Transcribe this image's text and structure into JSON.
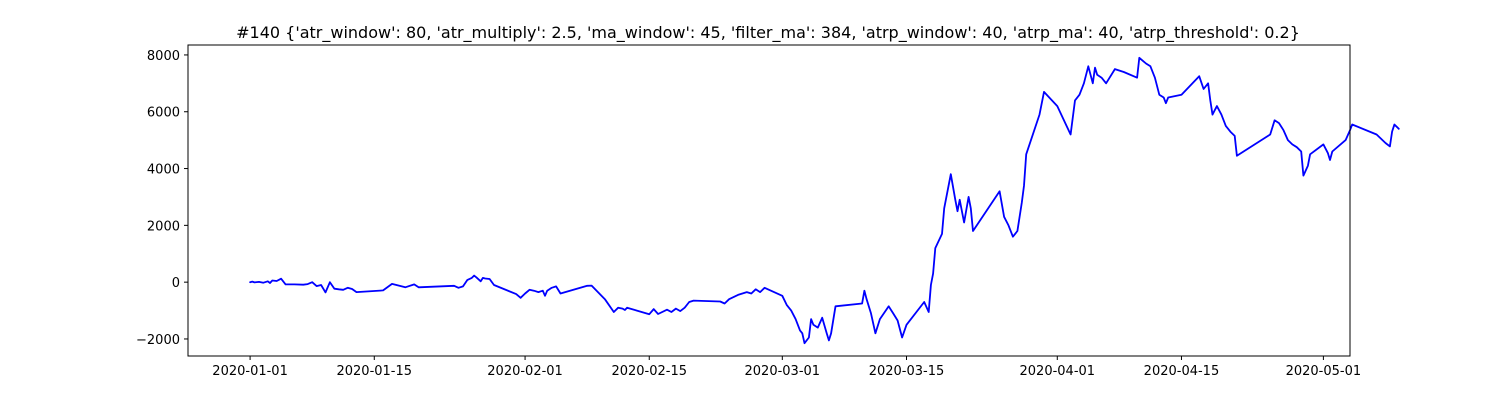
{
  "chart_data": {
    "type": "line",
    "title": "#140 {'atr_window': 80, 'atr_multiply': 2.5, 'ma_window': 45, 'filter_ma': 384, 'atrp_window': 40, 'atrp_ma': 40, 'atrp_threshold': 0.2}",
    "xlabel": "",
    "ylabel": "",
    "xlim": [
      "2019-12-25",
      "2020-05-04"
    ],
    "ylim": [
      -2600,
      8350
    ],
    "x_ticks": [
      {
        "value": "2020-01-01",
        "label": "2020-01-01"
      },
      {
        "value": "2020-01-15",
        "label": "2020-01-15"
      },
      {
        "value": "2020-02-01",
        "label": "2020-02-01"
      },
      {
        "value": "2020-02-15",
        "label": "2020-02-15"
      },
      {
        "value": "2020-03-01",
        "label": "2020-03-01"
      },
      {
        "value": "2020-03-15",
        "label": "2020-03-15"
      },
      {
        "value": "2020-04-01",
        "label": "2020-04-01"
      },
      {
        "value": "2020-04-15",
        "label": "2020-04-15"
      },
      {
        "value": "2020-05-01",
        "label": "2020-05-01"
      }
    ],
    "y_ticks": [
      {
        "value": -2000,
        "label": "−2000"
      },
      {
        "value": 0,
        "label": "0"
      },
      {
        "value": 2000,
        "label": "2000"
      },
      {
        "value": 4000,
        "label": "4000"
      },
      {
        "value": 6000,
        "label": "6000"
      },
      {
        "value": 8000,
        "label": "8000"
      }
    ],
    "grid": false,
    "series": [
      {
        "color": "#0000ff",
        "points": [
          [
            "2020-01-01 00:00",
            0
          ],
          [
            "2020-01-01 06:00",
            20
          ],
          [
            "2020-01-01 12:00",
            -10
          ],
          [
            "2020-01-02 00:00",
            10
          ],
          [
            "2020-01-02 12:00",
            -20
          ],
          [
            "2020-01-03 00:00",
            30
          ],
          [
            "2020-01-03 06:00",
            -30
          ],
          [
            "2020-01-03 12:00",
            60
          ],
          [
            "2020-01-04 00:00",
            40
          ],
          [
            "2020-01-04 12:00",
            120
          ],
          [
            "2020-01-05 00:00",
            -80
          ],
          [
            "2020-01-06 00:00",
            -80
          ],
          [
            "2020-01-07 00:00",
            -90
          ],
          [
            "2020-01-07 12:00",
            -70
          ],
          [
            "2020-01-08 00:00",
            0
          ],
          [
            "2020-01-08 12:00",
            -140
          ],
          [
            "2020-01-09 00:00",
            -100
          ],
          [
            "2020-01-09 12:00",
            -360
          ],
          [
            "2020-01-10 00:00",
            0
          ],
          [
            "2020-01-10 12:00",
            -230
          ],
          [
            "2020-01-11 00:00",
            -250
          ],
          [
            "2020-01-11 12:00",
            -270
          ],
          [
            "2020-01-12 00:00",
            -200
          ],
          [
            "2020-01-12 12:00",
            -240
          ],
          [
            "2020-01-13 00:00",
            -350
          ],
          [
            "2020-01-16 00:00",
            -290
          ],
          [
            "2020-01-17 00:00",
            -60
          ],
          [
            "2020-01-18 12:00",
            -180
          ],
          [
            "2020-01-19 12:00",
            -80
          ],
          [
            "2020-01-20 00:00",
            -180
          ],
          [
            "2020-01-24 00:00",
            -130
          ],
          [
            "2020-01-24 12:00",
            -200
          ],
          [
            "2020-01-25 00:00",
            -150
          ],
          [
            "2020-01-25 12:00",
            80
          ],
          [
            "2020-01-26 00:00",
            150
          ],
          [
            "2020-01-26 06:00",
            230
          ],
          [
            "2020-01-26 12:00",
            170
          ],
          [
            "2020-01-27 00:00",
            30
          ],
          [
            "2020-01-27 06:00",
            150
          ],
          [
            "2020-01-27 12:00",
            130
          ],
          [
            "2020-01-28 00:00",
            110
          ],
          [
            "2020-01-28 12:00",
            -100
          ],
          [
            "2020-01-31 00:00",
            -420
          ],
          [
            "2020-01-31 12:00",
            -550
          ],
          [
            "2020-02-01 00:00",
            -400
          ],
          [
            "2020-02-01 12:00",
            -270
          ],
          [
            "2020-02-02 00:00",
            -300
          ],
          [
            "2020-02-02 12:00",
            -350
          ],
          [
            "2020-02-03 00:00",
            -300
          ],
          [
            "2020-02-03 06:00",
            -480
          ],
          [
            "2020-02-03 12:00",
            -300
          ],
          [
            "2020-02-04 00:00",
            -200
          ],
          [
            "2020-02-04 12:00",
            -150
          ],
          [
            "2020-02-05 00:00",
            -400
          ],
          [
            "2020-02-08 00:00",
            -130
          ],
          [
            "2020-02-08 12:00",
            -120
          ],
          [
            "2020-02-09 00:00",
            -280
          ],
          [
            "2020-02-10 00:00",
            -600
          ],
          [
            "2020-02-11 00:00",
            -1050
          ],
          [
            "2020-02-11 12:00",
            -900
          ],
          [
            "2020-02-12 00:00",
            -930
          ],
          [
            "2020-02-12 06:00",
            -980
          ],
          [
            "2020-02-12 12:00",
            -900
          ],
          [
            "2020-02-15 00:00",
            -1130
          ],
          [
            "2020-02-15 12:00",
            -950
          ],
          [
            "2020-02-16 00:00",
            -1120
          ],
          [
            "2020-02-17 00:00",
            -970
          ],
          [
            "2020-02-17 12:00",
            -1050
          ],
          [
            "2020-02-18 00:00",
            -930
          ],
          [
            "2020-02-18 12:00",
            -1020
          ],
          [
            "2020-02-19 00:00",
            -900
          ],
          [
            "2020-02-19 12:00",
            -700
          ],
          [
            "2020-02-20 00:00",
            -650
          ],
          [
            "2020-02-23 00:00",
            -680
          ],
          [
            "2020-02-23 12:00",
            -750
          ],
          [
            "2020-02-24 00:00",
            -600
          ],
          [
            "2020-02-25 00:00",
            -450
          ],
          [
            "2020-02-26 00:00",
            -350
          ],
          [
            "2020-02-26 12:00",
            -400
          ],
          [
            "2020-02-27 00:00",
            -250
          ],
          [
            "2020-02-27 12:00",
            -350
          ],
          [
            "2020-02-28 00:00",
            -200
          ],
          [
            "2020-03-01 00:00",
            -480
          ],
          [
            "2020-03-01 12:00",
            -800
          ],
          [
            "2020-03-02 00:00",
            -1000
          ],
          [
            "2020-03-02 12:00",
            -1300
          ],
          [
            "2020-03-03 00:00",
            -1700
          ],
          [
            "2020-03-03 06:00",
            -1800
          ],
          [
            "2020-03-03 12:00",
            -2150
          ],
          [
            "2020-03-04 00:00",
            -1950
          ],
          [
            "2020-03-04 06:00",
            -1300
          ],
          [
            "2020-03-04 12:00",
            -1500
          ],
          [
            "2020-03-05 00:00",
            -1600
          ],
          [
            "2020-03-05 12:00",
            -1250
          ],
          [
            "2020-03-06 00:00",
            -1800
          ],
          [
            "2020-03-06 06:00",
            -2050
          ],
          [
            "2020-03-06 12:00",
            -1800
          ],
          [
            "2020-03-07 00:00",
            -850
          ],
          [
            "2020-03-10 00:00",
            -750
          ],
          [
            "2020-03-10 06:00",
            -300
          ],
          [
            "2020-03-10 12:00",
            -600
          ],
          [
            "2020-03-11 00:00",
            -1100
          ],
          [
            "2020-03-11 12:00",
            -1800
          ],
          [
            "2020-03-12 00:00",
            -1300
          ],
          [
            "2020-03-13 00:00",
            -850
          ],
          [
            "2020-03-13 12:00",
            -1100
          ],
          [
            "2020-03-14 00:00",
            -1350
          ],
          [
            "2020-03-14 12:00",
            -1950
          ],
          [
            "2020-03-15 00:00",
            -1500
          ],
          [
            "2020-03-17 00:00",
            -700
          ],
          [
            "2020-03-17 12:00",
            -1050
          ],
          [
            "2020-03-17 18:00",
            -100
          ],
          [
            "2020-03-18 00:00",
            300
          ],
          [
            "2020-03-18 06:00",
            1200
          ],
          [
            "2020-03-19 00:00",
            1700
          ],
          [
            "2020-03-19 06:00",
            2600
          ],
          [
            "2020-03-20 00:00",
            3800
          ],
          [
            "2020-03-20 12:00",
            2900
          ],
          [
            "2020-03-20 18:00",
            2500
          ],
          [
            "2020-03-21 00:00",
            2900
          ],
          [
            "2020-03-21 12:00",
            2100
          ],
          [
            "2020-03-22 00:00",
            3000
          ],
          [
            "2020-03-22 06:00",
            2600
          ],
          [
            "2020-03-22 12:00",
            1800
          ],
          [
            "2020-03-25 12:00",
            3200
          ],
          [
            "2020-03-26 00:00",
            2300
          ],
          [
            "2020-03-26 12:00",
            2000
          ],
          [
            "2020-03-27 00:00",
            1600
          ],
          [
            "2020-03-27 12:00",
            1800
          ],
          [
            "2020-03-28 00:00",
            2800
          ],
          [
            "2020-03-28 06:00",
            3400
          ],
          [
            "2020-03-28 12:00",
            4500
          ],
          [
            "2020-03-30 00:00",
            5900
          ],
          [
            "2020-03-30 12:00",
            6700
          ],
          [
            "2020-04-01 00:00",
            6200
          ],
          [
            "2020-04-02 12:00",
            5200
          ],
          [
            "2020-04-03 00:00",
            6400
          ],
          [
            "2020-04-03 12:00",
            6600
          ],
          [
            "2020-04-04 00:00",
            7000
          ],
          [
            "2020-04-04 12:00",
            7600
          ],
          [
            "2020-04-05 00:00",
            7000
          ],
          [
            "2020-04-05 06:00",
            7550
          ],
          [
            "2020-04-05 12:00",
            7300
          ],
          [
            "2020-04-06 00:00",
            7200
          ],
          [
            "2020-04-06 12:00",
            7000
          ],
          [
            "2020-04-07 12:00",
            7500
          ],
          [
            "2020-04-08 12:00",
            7400
          ],
          [
            "2020-04-10 00:00",
            7200
          ],
          [
            "2020-04-10 06:00",
            7900
          ],
          [
            "2020-04-11 00:00",
            7700
          ],
          [
            "2020-04-11 12:00",
            7600
          ],
          [
            "2020-04-12 00:00",
            7200
          ],
          [
            "2020-04-12 12:00",
            6600
          ],
          [
            "2020-04-13 00:00",
            6500
          ],
          [
            "2020-04-13 06:00",
            6300
          ],
          [
            "2020-04-13 12:00",
            6500
          ],
          [
            "2020-04-15 00:00",
            6600
          ],
          [
            "2020-04-17 00:00",
            7250
          ],
          [
            "2020-04-17 12:00",
            6800
          ],
          [
            "2020-04-18 00:00",
            7000
          ],
          [
            "2020-04-18 06:00",
            6400
          ],
          [
            "2020-04-18 12:00",
            5900
          ],
          [
            "2020-04-19 00:00",
            6200
          ],
          [
            "2020-04-19 12:00",
            5900
          ],
          [
            "2020-04-20 00:00",
            5500
          ],
          [
            "2020-04-20 12:00",
            5300
          ],
          [
            "2020-04-21 00:00",
            5150
          ],
          [
            "2020-04-21 06:00",
            4450
          ],
          [
            "2020-04-25 00:00",
            5200
          ],
          [
            "2020-04-25 12:00",
            5700
          ],
          [
            "2020-04-26 00:00",
            5600
          ],
          [
            "2020-04-26 12:00",
            5350
          ],
          [
            "2020-04-27 00:00",
            5000
          ],
          [
            "2020-04-27 12:00",
            4850
          ],
          [
            "2020-04-28 00:00",
            4750
          ],
          [
            "2020-04-28 12:00",
            4600
          ],
          [
            "2020-04-28 18:00",
            3750
          ],
          [
            "2020-04-29 06:00",
            4100
          ],
          [
            "2020-04-29 12:00",
            4500
          ],
          [
            "2020-05-01 00:00",
            4850
          ],
          [
            "2020-05-01 12:00",
            4550
          ],
          [
            "2020-05-01 18:00",
            4300
          ],
          [
            "2020-05-02 00:00",
            4600
          ],
          [
            "2020-05-03 12:00",
            5000
          ],
          [
            "2020-05-04 00:00",
            5350
          ],
          [
            "2020-05-04 06:00",
            5550
          ],
          [
            "2020-05-07 00:00",
            5200
          ],
          [
            "2020-05-08 00:00",
            4900
          ],
          [
            "2020-05-08 12:00",
            4780
          ],
          [
            "2020-05-08 18:00",
            5300
          ],
          [
            "2020-05-09 00:00",
            5550
          ],
          [
            "2020-05-09 12:00",
            5400
          ]
        ]
      }
    ]
  }
}
